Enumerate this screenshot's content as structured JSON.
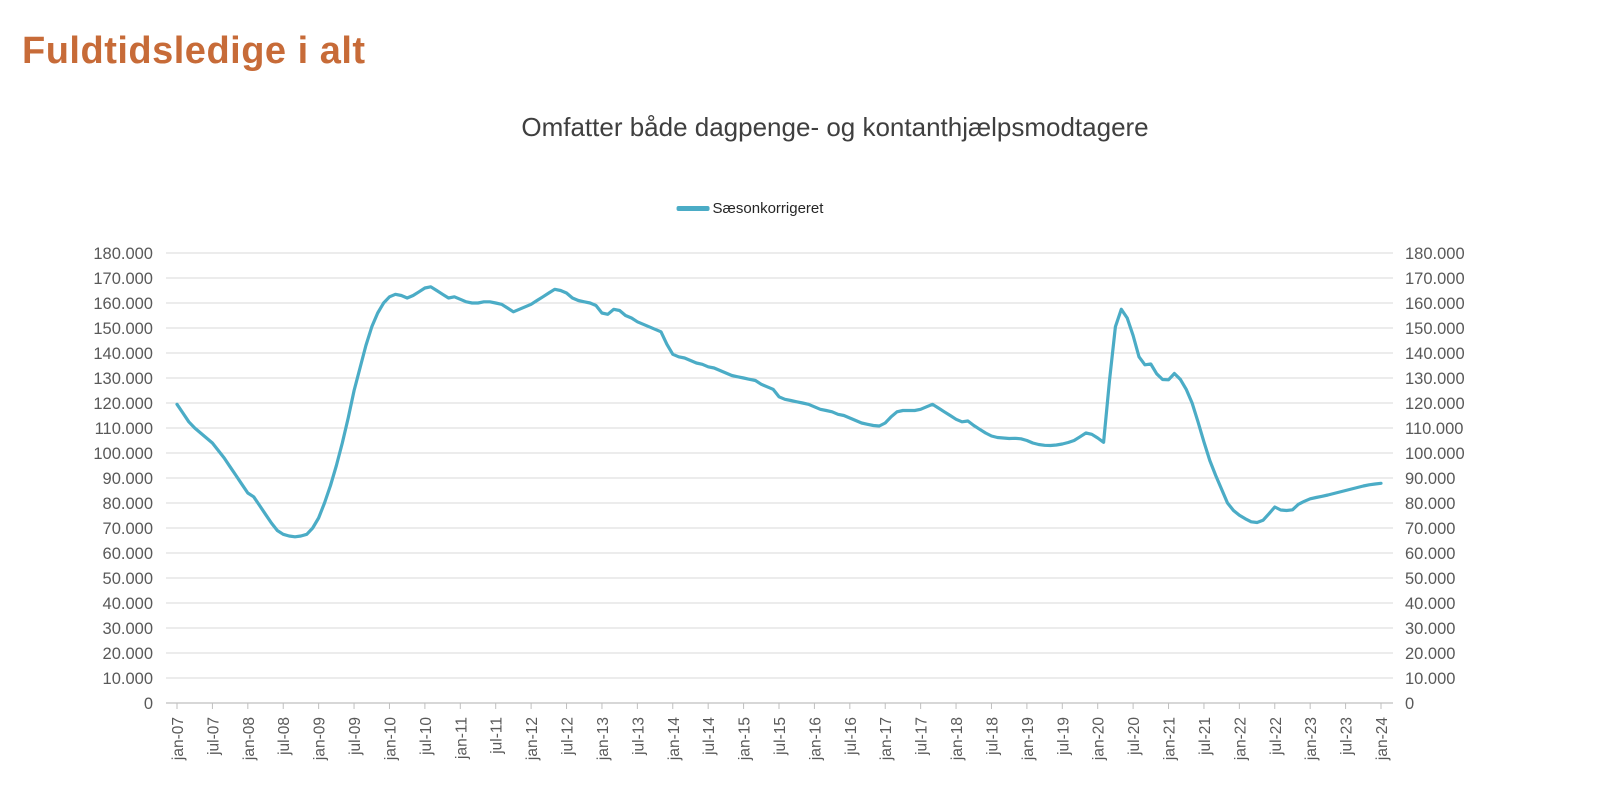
{
  "page": {
    "title": "Fuldtidsledige i alt"
  },
  "chart": {
    "subtitle": "Omfatter både dagpenge- og kontanthjælpsmodtagere",
    "legend": {
      "label": "Sæsonkorrigeret"
    }
  },
  "colors": {
    "title_orange": "#c76b38",
    "series_teal": "#4bacc6",
    "gridline": "#d9d9d9",
    "axis_line": "#bfbfbf",
    "tick_text": "#595959",
    "subtitle_text": "#3f3f3f",
    "legend_text": "#262626"
  },
  "chart_data": {
    "type": "line",
    "title": "Omfatter både dagpenge- og kontanthjælpsmodtagere",
    "x_unit": "month",
    "x_start": "jan-07",
    "x_end": "jan-24",
    "months_total": 205,
    "x_tick_every_months": 6,
    "x_tick_labels": [
      "jan-07",
      "jul-07",
      "jan-08",
      "jul-08",
      "jan-09",
      "jul-09",
      "jan-10",
      "jul-10",
      "jan-11",
      "jul-11",
      "jan-12",
      "jul-12",
      "jan-13",
      "jul-13",
      "jan-14",
      "jul-14",
      "jan-15",
      "jul-15",
      "jan-16",
      "jul-16",
      "jan-17",
      "jul-17",
      "jan-18",
      "jul-18",
      "jan-19",
      "jul-19",
      "jan-20",
      "jul-20",
      "jan-21",
      "jul-21",
      "jan-22",
      "jul-22",
      "jan-23",
      "jul-23",
      "jan-24"
    ],
    "ylim": [
      0,
      180000
    ],
    "y_tick_step": 10000,
    "y_tick_labels": [
      "0",
      "10.000",
      "20.000",
      "30.000",
      "40.000",
      "50.000",
      "60.000",
      "70.000",
      "80.000",
      "90.000",
      "100.000",
      "110.000",
      "120.000",
      "130.000",
      "140.000",
      "150.000",
      "160.000",
      "170.000",
      "180.000"
    ],
    "y_axis_sides": "both",
    "grid": "horizontal",
    "legend_position": "top-center",
    "series": [
      {
        "name": "Sæsonkorrigeret",
        "color": "#4bacc6",
        "values": [
          119500,
          116000,
          112500,
          110000,
          108000,
          106000,
          104000,
          101000,
          98000,
          94500,
          91000,
          87500,
          84000,
          82500,
          79000,
          75500,
          72000,
          69000,
          67500,
          66800,
          66500,
          66800,
          67500,
          70000,
          74000,
          80000,
          87000,
          95000,
          104000,
          114000,
          125000,
          134000,
          143000,
          150500,
          156000,
          160000,
          162500,
          163500,
          163000,
          162000,
          163000,
          164500,
          166000,
          166500,
          165000,
          163500,
          162000,
          162500,
          161500,
          160500,
          160000,
          160000,
          160500,
          160500,
          160000,
          159500,
          158000,
          156500,
          157500,
          158500,
          159500,
          161000,
          162500,
          164000,
          165500,
          165000,
          164000,
          162000,
          161000,
          160500,
          160000,
          159000,
          156000,
          155500,
          157500,
          157000,
          155000,
          154000,
          152500,
          151500,
          150500,
          149500,
          148500,
          143500,
          139500,
          138500,
          138000,
          137000,
          136000,
          135500,
          134500,
          134000,
          133000,
          132000,
          131000,
          130500,
          130000,
          129500,
          129000,
          127500,
          126500,
          125500,
          122500,
          121500,
          121000,
          120500,
          120000,
          119500,
          118500,
          117500,
          117000,
          116500,
          115500,
          115000,
          114000,
          113000,
          112000,
          111500,
          111000,
          110800,
          112000,
          114500,
          116500,
          117000,
          117000,
          117000,
          117500,
          118500,
          119500,
          118000,
          116500,
          115000,
          113500,
          112500,
          112800,
          111000,
          109500,
          108000,
          106800,
          106200,
          106000,
          105800,
          105900,
          105700,
          105000,
          104000,
          103400,
          103100,
          103000,
          103200,
          103600,
          104200,
          105000,
          106500,
          108000,
          107500,
          106000,
          104300,
          129000,
          150500,
          157500,
          154000,
          147000,
          138500,
          135300,
          135600,
          131700,
          129400,
          129300,
          131800,
          129500,
          125500,
          120000,
          112500,
          104500,
          97000,
          91000,
          85500,
          80000,
          77000,
          75100,
          73700,
          72500,
          72200,
          73100,
          75700,
          78400,
          77200,
          77000,
          77300,
          79500,
          80700,
          81700,
          82200,
          82700,
          83200,
          83800,
          84400,
          85000,
          85600,
          86200,
          86800,
          87300,
          87600,
          87900
        ]
      }
    ]
  }
}
